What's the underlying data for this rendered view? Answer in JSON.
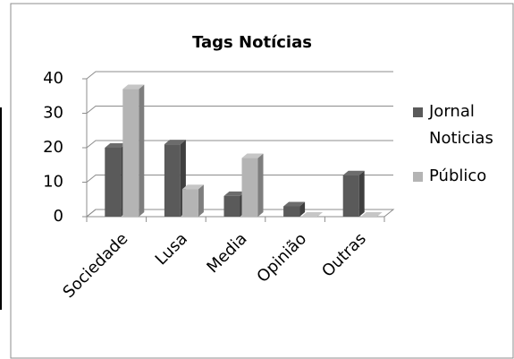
{
  "chart_data": {
    "type": "bar3d",
    "title": "Tags Notícias",
    "categories": [
      "Sociedade",
      "Lusa",
      "Media",
      "Opinião",
      "Outras"
    ],
    "series": [
      {
        "name": "Jornal Noticias",
        "color": "#5a5a5a",
        "values": [
          20,
          21,
          6,
          3,
          12
        ]
      },
      {
        "name": "Público",
        "color": "#b4b4b4",
        "values": [
          37,
          8,
          17,
          0,
          0
        ]
      }
    ],
    "ylim": [
      0,
      40
    ],
    "yticks": [
      0,
      10,
      20,
      30,
      40
    ],
    "grid": true,
    "legend": "right"
  }
}
